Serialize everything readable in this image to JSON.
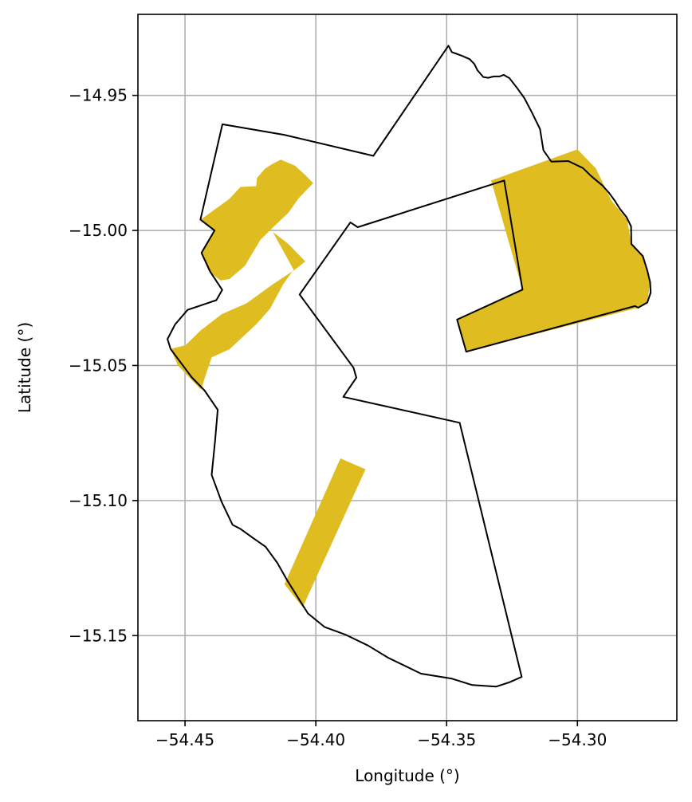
{
  "chart_data": {
    "type": "map",
    "xlabel": "Longitude (°)",
    "ylabel": "Latitude (°)",
    "xlim": [
      -54.468,
      -54.262
    ],
    "ylim": [
      -15.1815,
      -14.92
    ],
    "grid": true,
    "x_ticks": [
      {
        "value": -54.45,
        "label": "−54.45"
      },
      {
        "value": -54.4,
        "label": "−54.40"
      },
      {
        "value": -54.35,
        "label": "−54.35"
      },
      {
        "value": -54.3,
        "label": "−54.30"
      }
    ],
    "y_ticks": [
      {
        "value": -14.95,
        "label": "−14.95"
      },
      {
        "value": -15.0,
        "label": "−15.00"
      },
      {
        "value": -15.05,
        "label": "−15.05"
      },
      {
        "value": -15.1,
        "label": "−15.10"
      },
      {
        "value": -15.15,
        "label": "−15.15"
      }
    ],
    "colors": {
      "outline": "#000000",
      "fill": "#dfbc20",
      "grid": "#b0b0b0"
    },
    "outline": [
      [
        -54.3493,
        -14.9316
      ],
      [
        -54.348,
        -14.934
      ],
      [
        -54.3462,
        -14.9346
      ],
      [
        -54.344,
        -14.9354
      ],
      [
        -54.3412,
        -14.9366
      ],
      [
        -54.3394,
        -14.9384
      ],
      [
        -54.3382,
        -14.9407
      ],
      [
        -54.336,
        -14.9432
      ],
      [
        -54.3341,
        -14.9435
      ],
      [
        -54.332,
        -14.943
      ],
      [
        -54.3298,
        -14.943
      ],
      [
        -54.3282,
        -14.9424
      ],
      [
        -54.326,
        -14.9436
      ],
      [
        -54.3229,
        -14.9475
      ],
      [
        -54.3203,
        -14.951
      ],
      [
        -54.3173,
        -14.9565
      ],
      [
        -54.3143,
        -14.9625
      ],
      [
        -54.313,
        -14.9703
      ],
      [
        -54.31,
        -14.9745
      ],
      [
        -54.3035,
        -14.9743
      ],
      [
        -54.2979,
        -14.9769
      ],
      [
        -54.2946,
        -14.98
      ],
      [
        -54.2904,
        -14.9834
      ],
      [
        -54.288,
        -14.986
      ],
      [
        -54.2857,
        -14.989
      ],
      [
        -54.2838,
        -14.992
      ],
      [
        -54.2813,
        -14.995
      ],
      [
        -54.2795,
        -14.9985
      ],
      [
        -54.2794,
        -15.005
      ],
      [
        -54.275,
        -15.0095
      ],
      [
        -54.2733,
        -15.0148
      ],
      [
        -54.2722,
        -15.0192
      ],
      [
        -54.272,
        -15.023
      ],
      [
        -54.2733,
        -15.0267
      ],
      [
        -54.2768,
        -15.0286
      ],
      [
        -54.278,
        -15.028
      ],
      [
        -54.3425,
        -15.0449
      ],
      [
        -54.346,
        -15.033
      ],
      [
        -54.321,
        -15.0219
      ],
      [
        -54.328,
        -14.9815
      ],
      [
        -54.384,
        -14.9988
      ],
      [
        -54.3868,
        -14.997
      ],
      [
        -54.4062,
        -15.0237
      ],
      [
        -54.3856,
        -15.0508
      ],
      [
        -54.3845,
        -15.0545
      ],
      [
        -54.3895,
        -15.0616
      ],
      [
        -54.345,
        -15.0712
      ],
      [
        -54.3213,
        -15.1653
      ],
      [
        -54.3261,
        -15.1673
      ],
      [
        -54.3311,
        -15.1689
      ],
      [
        -54.3402,
        -15.1683
      ],
      [
        -54.3482,
        -15.1659
      ],
      [
        -54.3598,
        -15.1641
      ],
      [
        -54.3723,
        -15.1582
      ],
      [
        -54.38,
        -15.1537
      ],
      [
        -54.3888,
        -15.1496
      ],
      [
        -54.3967,
        -15.1468
      ],
      [
        -54.403,
        -15.1418
      ],
      [
        -54.4062,
        -15.1369
      ],
      [
        -54.4109,
        -15.1296
      ],
      [
        -54.4147,
        -15.1231
      ],
      [
        -54.4192,
        -15.1171
      ],
      [
        -54.4237,
        -15.1141
      ],
      [
        -54.4288,
        -15.1105
      ],
      [
        -54.4318,
        -15.109
      ],
      [
        -54.436,
        -15.1005
      ],
      [
        -54.4398,
        -15.0905
      ],
      [
        -54.4385,
        -15.0778
      ],
      [
        -54.4375,
        -15.0664
      ],
      [
        -54.4425,
        -15.0593
      ],
      [
        -54.4475,
        -15.0543
      ],
      [
        -54.4555,
        -15.0439
      ],
      [
        -54.4567,
        -15.0402
      ],
      [
        -54.4538,
        -15.0348
      ],
      [
        -54.449,
        -15.0294
      ],
      [
        -54.438,
        -15.0258
      ],
      [
        -54.4358,
        -15.022
      ],
      [
        -54.4403,
        -15.0154
      ],
      [
        -54.4437,
        -15.0083
      ],
      [
        -54.4387,
        -15.0
      ],
      [
        -54.4441,
        -14.996
      ],
      [
        -54.4357,
        -14.9607
      ],
      [
        -54.4121,
        -14.9646
      ],
      [
        -54.378,
        -14.9724
      ]
    ],
    "filled_areas": [
      [
        [
          -54.4443,
          -14.9962
        ],
        [
          -54.433,
          -14.9883
        ],
        [
          -54.4288,
          -14.9839
        ],
        [
          -54.4228,
          -14.9836
        ],
        [
          -54.4225,
          -14.9806
        ],
        [
          -54.4194,
          -14.9771
        ],
        [
          -54.4168,
          -14.9755
        ],
        [
          -54.4134,
          -14.9738
        ],
        [
          -54.408,
          -14.976
        ],
        [
          -54.404,
          -14.9795
        ],
        [
          -54.401,
          -14.9825
        ],
        [
          -54.4065,
          -14.988
        ],
        [
          -54.4105,
          -14.9935
        ],
        [
          -54.416,
          -14.9985
        ],
        [
          -54.4212,
          -15.0035
        ],
        [
          -54.424,
          -15.008
        ],
        [
          -54.427,
          -15.013
        ],
        [
          -54.433,
          -15.018
        ],
        [
          -54.4365,
          -15.0185
        ],
        [
          -54.441,
          -15.015
        ],
        [
          -54.4437,
          -15.0083
        ],
        [
          -54.4387,
          -15.0
        ]
      ],
      [
        [
          -54.4165,
          -15.0005
        ],
        [
          -54.4105,
          -15.005
        ],
        [
          -54.404,
          -15.0115
        ],
        [
          -54.408,
          -15.0145
        ],
        [
          -54.4165,
          -15.02
        ],
        [
          -54.4265,
          -15.027
        ],
        [
          -54.436,
          -15.031
        ],
        [
          -54.444,
          -15.037
        ],
        [
          -54.4498,
          -15.0425
        ],
        [
          -54.4555,
          -15.0439
        ],
        [
          -54.4527,
          -15.05
        ],
        [
          -54.448,
          -15.0548
        ],
        [
          -54.4438,
          -15.059
        ],
        [
          -54.4426,
          -15.055
        ],
        [
          -54.4398,
          -15.047
        ],
        [
          -54.433,
          -15.044
        ],
        [
          -54.4275,
          -15.039
        ],
        [
          -54.4225,
          -15.0345
        ],
        [
          -54.4175,
          -15.029
        ],
        [
          -54.4125,
          -15.02
        ],
        [
          -54.4085,
          -15.0145
        ]
      ],
      [
        [
          -54.333,
          -14.9815
        ],
        [
          -54.3,
          -14.97
        ],
        [
          -54.293,
          -14.977
        ],
        [
          -54.287,
          -14.989
        ],
        [
          -54.281,
          -14.996
        ],
        [
          -54.2794,
          -15.005
        ],
        [
          -54.275,
          -15.0095
        ],
        [
          -54.2722,
          -15.0192
        ],
        [
          -54.2733,
          -15.0267
        ],
        [
          -54.2768,
          -15.0286
        ],
        [
          -54.3425,
          -15.0449
        ],
        [
          -54.346,
          -15.033
        ],
        [
          -54.321,
          -15.0219
        ]
      ],
      [
        [
          -54.3906,
          -15.0844
        ],
        [
          -54.381,
          -15.0884
        ],
        [
          -54.405,
          -15.1395
        ],
        [
          -54.412,
          -15.131
        ]
      ]
    ]
  }
}
